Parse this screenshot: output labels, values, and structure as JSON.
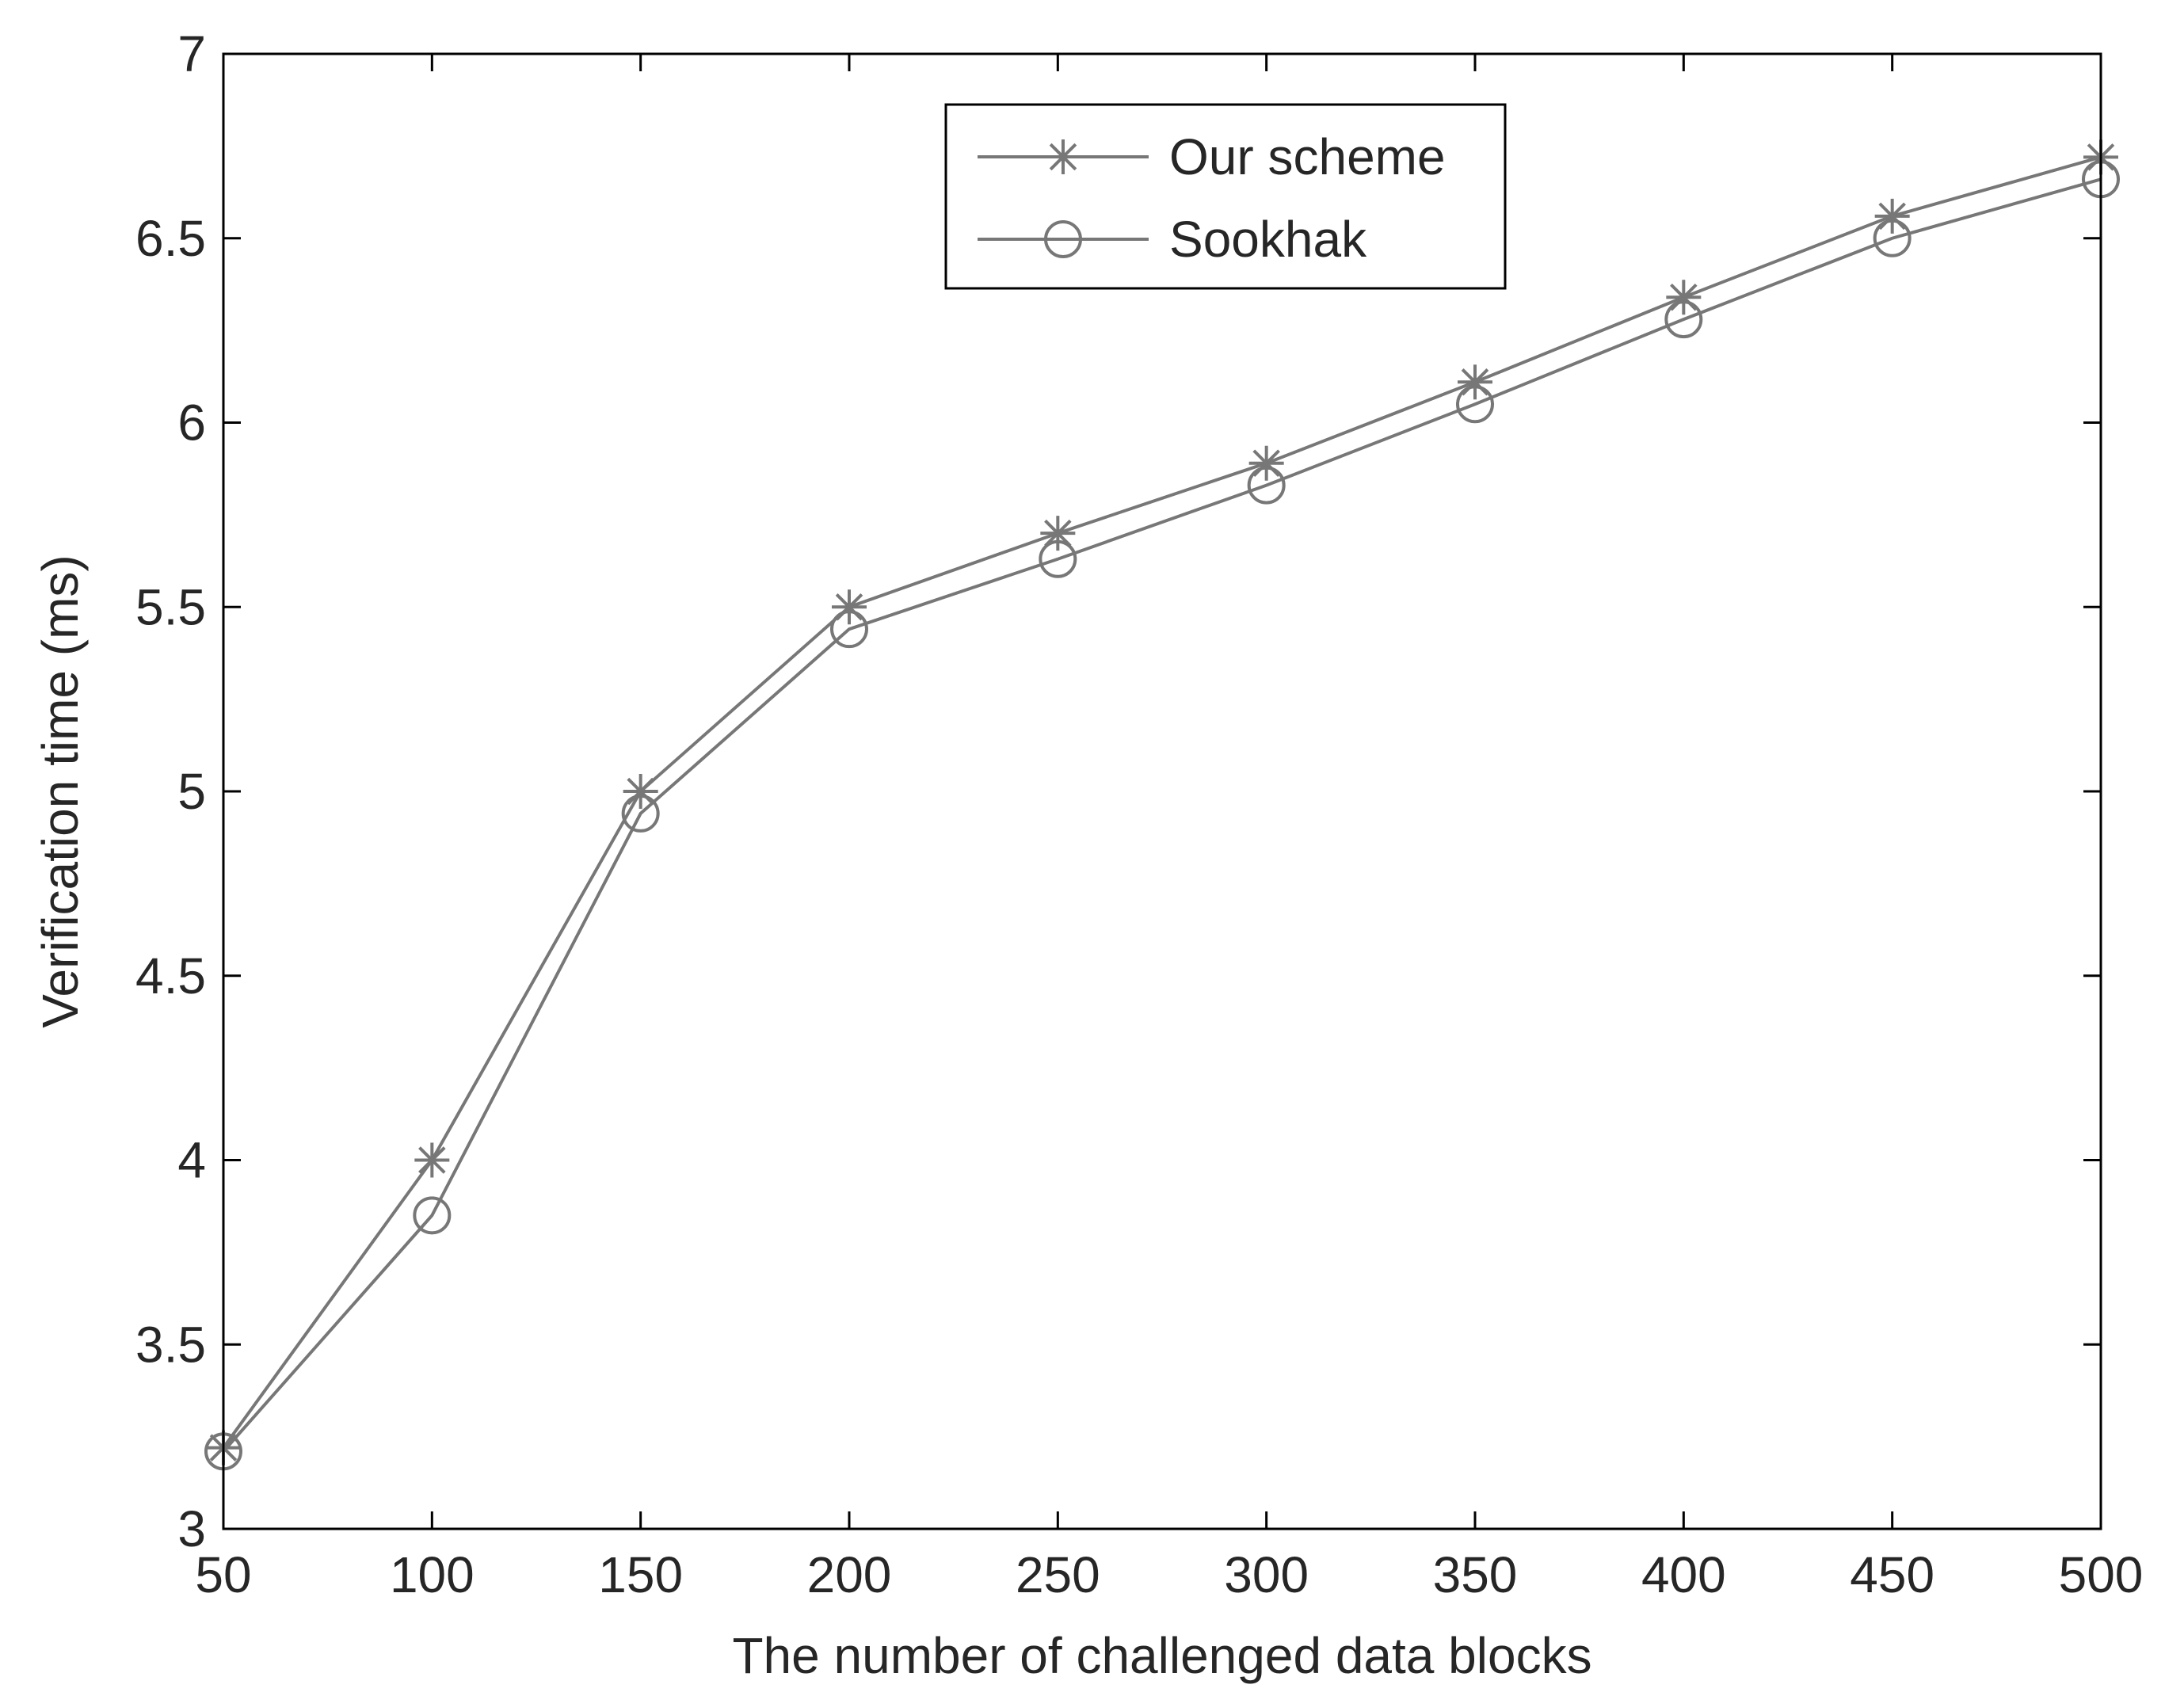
{
  "chart_data": {
    "type": "line",
    "title": "",
    "xlabel": "The number of challenged data blocks",
    "ylabel": "Verification time (ms)",
    "xlim": [
      50,
      500
    ],
    "ylim": [
      3,
      7
    ],
    "xticks": [
      50,
      100,
      150,
      200,
      250,
      300,
      350,
      400,
      450,
      500
    ],
    "yticks": [
      3,
      3.5,
      4,
      4.5,
      5,
      5.5,
      6,
      6.5,
      7
    ],
    "xtick_labels": [
      "50",
      "100",
      "150",
      "200",
      "250",
      "300",
      "350",
      "400",
      "450",
      "500"
    ],
    "ytick_labels": [
      "3",
      "3.5",
      "4",
      "4.5",
      "5",
      "5.5",
      "6",
      "6.5",
      "7"
    ],
    "grid": false,
    "legend_position": "top-center",
    "x": [
      50,
      100,
      150,
      200,
      250,
      300,
      350,
      400,
      450,
      500
    ],
    "series": [
      {
        "name": "Our scheme",
        "marker": "star",
        "color": "#777777",
        "values": [
          3.22,
          4.0,
          5.0,
          5.5,
          5.7,
          5.89,
          6.11,
          6.34,
          6.56,
          6.72
        ]
      },
      {
        "name": "Sookhak",
        "marker": "circle",
        "color": "#777777",
        "values": [
          3.21,
          3.85,
          4.94,
          5.44,
          5.63,
          5.83,
          6.05,
          6.28,
          6.5,
          6.66
        ]
      }
    ]
  }
}
